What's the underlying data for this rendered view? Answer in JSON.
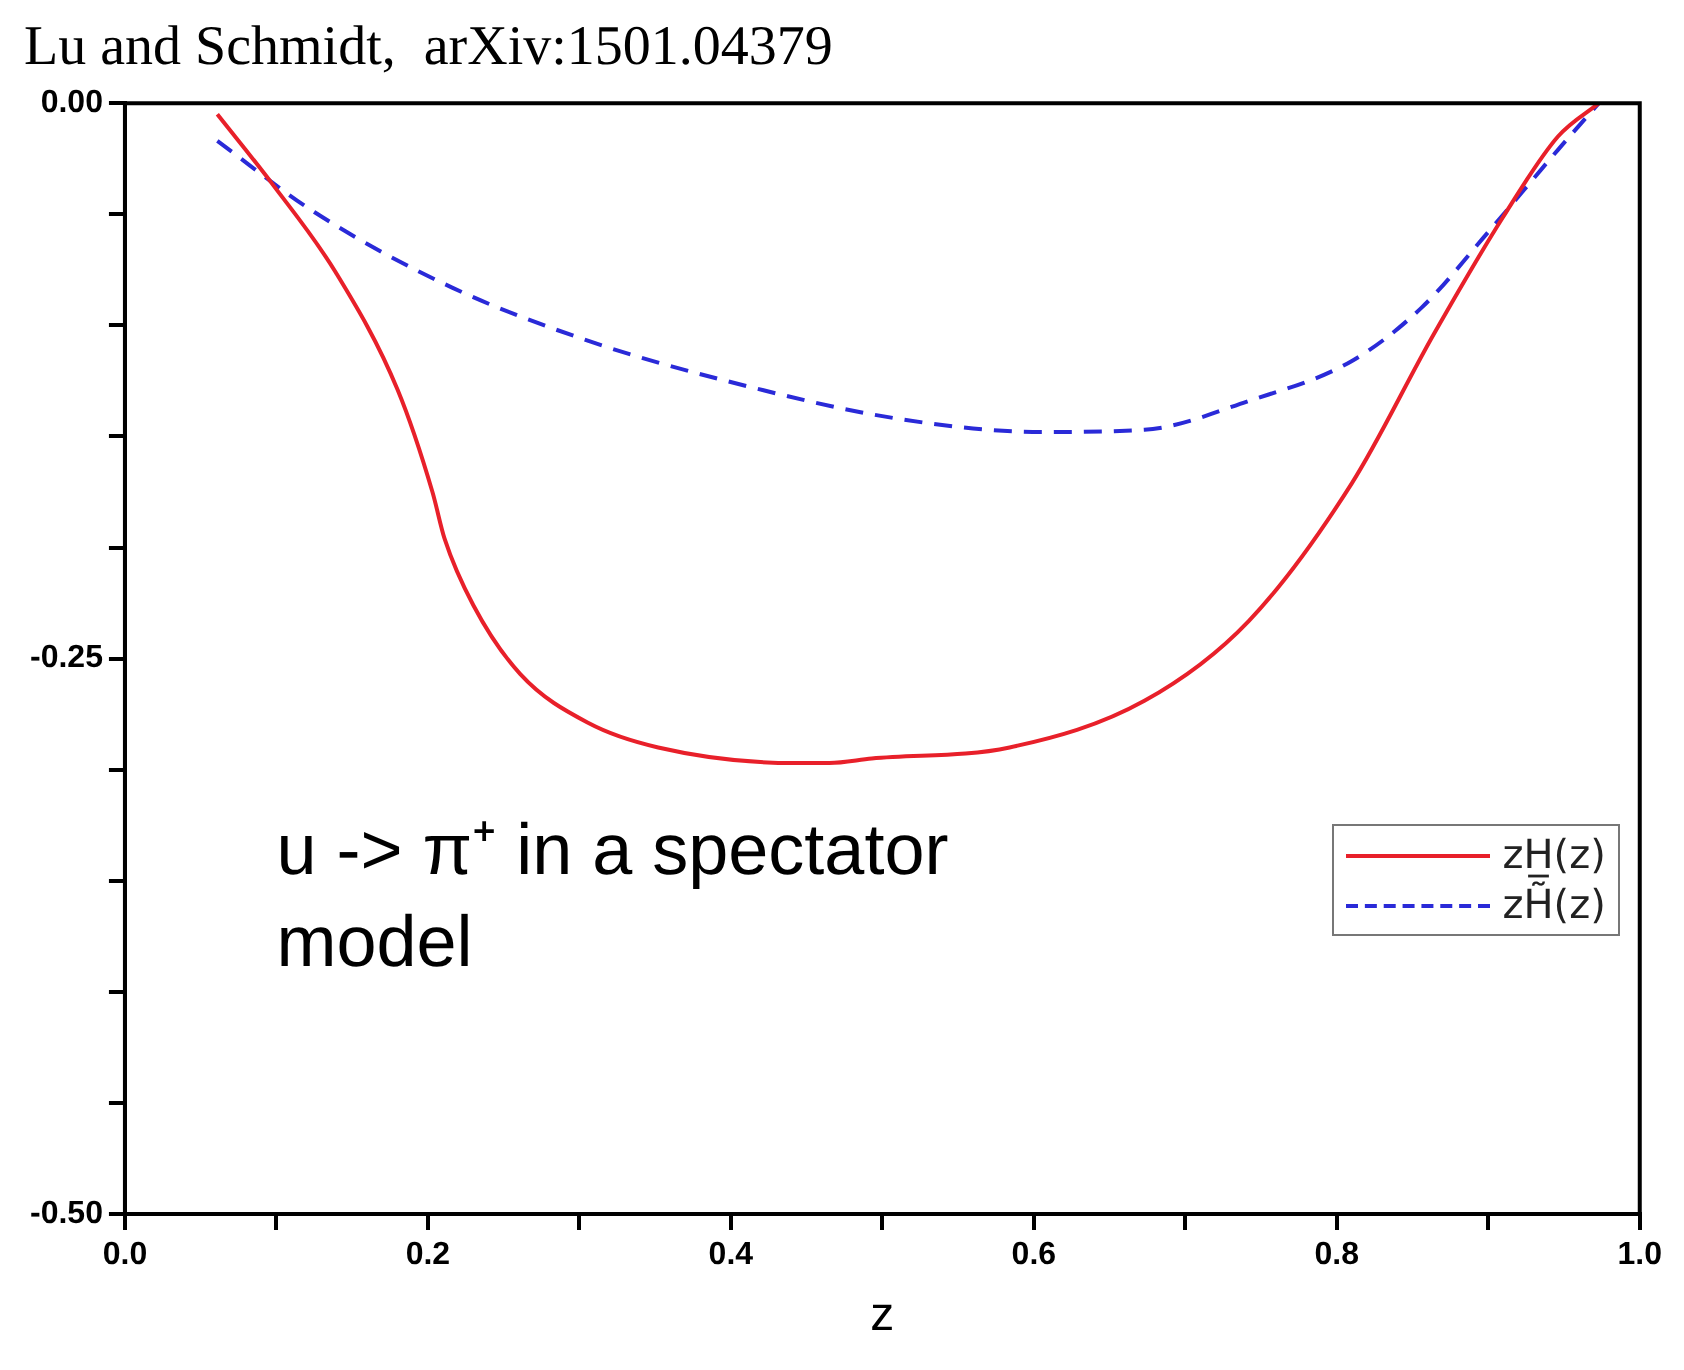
{
  "chart_data": {
    "type": "line",
    "title": "Lu and Schmidt,  arXiv:1501.04379",
    "xlabel": "z",
    "annotations": [
      "u -> π⁺ in a spectator model"
    ],
    "xlim": [
      0,
      1
    ],
    "xticks": [
      {
        "value": 0,
        "label": "0.0"
      },
      {
        "value": 0.1,
        "label": null
      },
      {
        "value": 0.2,
        "label": "0.2"
      },
      {
        "value": 0.3,
        "label": null
      },
      {
        "value": 0.4,
        "label": "0.4"
      },
      {
        "value": 0.5,
        "label": null
      },
      {
        "value": 0.6,
        "label": "0.6"
      },
      {
        "value": 0.7,
        "label": null
      },
      {
        "value": 0.8,
        "label": "0.8"
      },
      {
        "value": 0.9,
        "label": null
      },
      {
        "value": 1,
        "label": "1.0"
      }
    ],
    "ylim": [
      -0.5,
      0
    ],
    "yticks": [
      {
        "value": -0.5,
        "label": "-0.50"
      },
      {
        "value": -0.45,
        "label": null
      },
      {
        "value": -0.4,
        "label": null
      },
      {
        "value": -0.35,
        "label": null
      },
      {
        "value": -0.3,
        "label": null
      },
      {
        "value": -0.25,
        "label": "-0.25"
      },
      {
        "value": -0.2,
        "label": null
      },
      {
        "value": -0.15,
        "label": null
      },
      {
        "value": -0.1,
        "label": null
      },
      {
        "value": -0.05,
        "label": null
      },
      {
        "value": 0,
        "label": "0.00"
      }
    ],
    "grid": false,
    "legend": "right",
    "marker": "none",
    "series": [
      {
        "name": "zH̲(z)",
        "color": "#e8202a",
        "line_style": "solid",
        "x": [
          0.061,
          0.098,
          0.139,
          0.18,
          0.203,
          0.211,
          0.23,
          0.261,
          0.306,
          0.352,
          0.442,
          0.465,
          0.493,
          0.584,
          0.673,
          0.742,
          0.81,
          0.864,
          0.91,
          0.946,
          0.973
        ],
        "values": [
          -0.005,
          -0.037,
          -0.076,
          -0.129,
          -0.175,
          -0.196,
          -0.226,
          -0.257,
          -0.279,
          -0.29,
          -0.297,
          -0.297,
          -0.295,
          -0.29,
          -0.269,
          -0.233,
          -0.171,
          -0.104,
          -0.051,
          -0.015,
          0
        ]
      },
      {
        "name": "zH̃(z)",
        "color": "#2a2ad8",
        "line_style": "dashed",
        "x": [
          0.061,
          0.125,
          0.216,
          0.306,
          0.397,
          0.51,
          0.605,
          0.673,
          0.742,
          0.81,
          0.856,
          0.9,
          0.946,
          0.973
        ],
        "values": [
          -0.017,
          -0.049,
          -0.083,
          -0.107,
          -0.125,
          -0.142,
          -0.148,
          -0.147,
          -0.134,
          -0.116,
          -0.092,
          -0.058,
          -0.021,
          0
        ]
      }
    ]
  }
}
